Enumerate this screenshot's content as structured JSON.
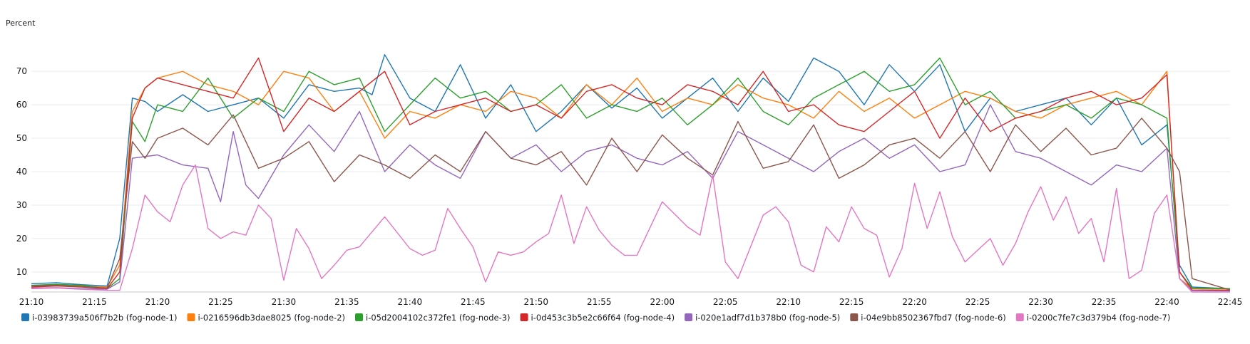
{
  "chart_data": {
    "type": "line",
    "ylabel": "Percent",
    "ylim": [
      4,
      76
    ],
    "y_ticks": [
      10,
      20,
      30,
      40,
      50,
      60,
      70
    ],
    "x_start": "21:10",
    "x_end": "22:45",
    "x_ticks": [
      "21:10",
      "21:15",
      "21:20",
      "21:25",
      "21:30",
      "21:35",
      "21:40",
      "21:45",
      "21:50",
      "21:55",
      "22:00",
      "22:05",
      "22:10",
      "22:15",
      "22:20",
      "22:25",
      "22:30",
      "22:35",
      "22:40",
      "22:45"
    ],
    "grid": true,
    "legend_position": "bottom",
    "series": [
      {
        "name": "i-03983739a506f7b2b (fog-node-1)",
        "color": "#1f77b4",
        "x": [
          "21:10",
          "21:12",
          "21:14",
          "21:16",
          "21:17",
          "21:18",
          "21:19",
          "21:20",
          "21:22",
          "21:24",
          "21:26",
          "21:28",
          "21:30",
          "21:32",
          "21:34",
          "21:36",
          "21:37",
          "21:38",
          "21:40",
          "21:42",
          "21:44",
          "21:46",
          "21:48",
          "21:50",
          "21:52",
          "21:54",
          "21:56",
          "21:58",
          "22:00",
          "22:02",
          "22:04",
          "22:06",
          "22:08",
          "22:10",
          "22:12",
          "22:14",
          "22:16",
          "22:18",
          "22:20",
          "22:22",
          "22:24",
          "22:26",
          "22:28",
          "22:30",
          "22:32",
          "22:34",
          "22:36",
          "22:38",
          "22:40",
          "22:41",
          "22:42",
          "22:45"
        ],
        "values": [
          6.5,
          6.8,
          6.2,
          5.8,
          20,
          62,
          61,
          58,
          63,
          58,
          60,
          62,
          56,
          66,
          64,
          65,
          63,
          75,
          62,
          58,
          72,
          56,
          66,
          52,
          58,
          66,
          59,
          65,
          56,
          62,
          68,
          58,
          68,
          61,
          74,
          70,
          60,
          72,
          64,
          72,
          52,
          62,
          58,
          60,
          62,
          54,
          62,
          48,
          54,
          12,
          5.5,
          5
        ]
      },
      {
        "name": "i-0216596db3dae8025 (fog-node-2)",
        "color": "#ff7f0e",
        "x": [
          "21:10",
          "21:12",
          "21:14",
          "21:16",
          "21:17",
          "21:18",
          "21:19",
          "21:20",
          "21:22",
          "21:24",
          "21:26",
          "21:28",
          "21:30",
          "21:32",
          "21:34",
          "21:36",
          "21:38",
          "21:40",
          "21:42",
          "21:44",
          "21:46",
          "21:48",
          "21:50",
          "21:52",
          "21:54",
          "21:56",
          "21:58",
          "22:00",
          "22:02",
          "22:04",
          "22:06",
          "22:08",
          "22:10",
          "22:12",
          "22:14",
          "22:16",
          "22:18",
          "22:20",
          "22:22",
          "22:24",
          "22:26",
          "22:28",
          "22:30",
          "22:32",
          "22:34",
          "22:36",
          "22:38",
          "22:40",
          "22:41",
          "22:42",
          "22:45"
        ],
        "values": [
          6,
          6.2,
          5.8,
          5.5,
          12,
          58,
          65,
          68,
          70,
          66,
          64,
          60,
          70,
          68,
          58,
          64,
          50,
          58,
          56,
          60,
          58,
          64,
          62,
          56,
          66,
          60,
          68,
          58,
          62,
          60,
          66,
          62,
          60,
          56,
          64,
          58,
          62,
          56,
          60,
          64,
          62,
          58,
          56,
          60,
          62,
          64,
          60,
          70,
          8,
          5,
          4.8
        ]
      },
      {
        "name": "i-05d2004102c372fe1 (fog-node-3)",
        "color": "#2ca02c",
        "x": [
          "21:10",
          "21:12",
          "21:14",
          "21:16",
          "21:17",
          "21:18",
          "21:19",
          "21:20",
          "21:22",
          "21:24",
          "21:26",
          "21:28",
          "21:30",
          "21:32",
          "21:34",
          "21:36",
          "21:38",
          "21:40",
          "21:42",
          "21:44",
          "21:46",
          "21:48",
          "21:50",
          "21:52",
          "21:54",
          "21:56",
          "21:58",
          "22:00",
          "22:02",
          "22:04",
          "22:06",
          "22:08",
          "22:10",
          "22:12",
          "22:14",
          "22:16",
          "22:18",
          "22:20",
          "22:22",
          "22:24",
          "22:26",
          "22:28",
          "22:30",
          "22:32",
          "22:34",
          "22:36",
          "22:38",
          "22:40",
          "22:41",
          "22:42",
          "22:45"
        ],
        "values": [
          6,
          6.3,
          6,
          5,
          8,
          55,
          49,
          60,
          58,
          68,
          56,
          62,
          58,
          70,
          66,
          68,
          52,
          60,
          68,
          62,
          64,
          58,
          60,
          66,
          56,
          60,
          58,
          62,
          54,
          60,
          68,
          58,
          54,
          62,
          66,
          70,
          64,
          66,
          74,
          60,
          64,
          56,
          58,
          60,
          56,
          62,
          60,
          56,
          10,
          5.2,
          5
        ]
      },
      {
        "name": "i-0d453c3b5e2c66f64 (fog-node-4)",
        "color": "#d62728",
        "x": [
          "21:10",
          "21:12",
          "21:14",
          "21:16",
          "21:17",
          "21:18",
          "21:19",
          "21:20",
          "21:22",
          "21:24",
          "21:26",
          "21:28",
          "21:30",
          "21:32",
          "21:34",
          "21:36",
          "21:38",
          "21:40",
          "21:42",
          "21:44",
          "21:46",
          "21:48",
          "21:50",
          "21:52",
          "21:54",
          "21:56",
          "21:58",
          "22:00",
          "22:02",
          "22:04",
          "22:06",
          "22:08",
          "22:10",
          "22:12",
          "22:14",
          "22:16",
          "22:18",
          "22:20",
          "22:22",
          "22:24",
          "22:26",
          "22:28",
          "22:30",
          "22:32",
          "22:34",
          "22:36",
          "22:38",
          "22:40",
          "22:41",
          "22:42",
          "22:45"
        ],
        "values": [
          5.5,
          5.8,
          5.5,
          5,
          10,
          56,
          65,
          68,
          66,
          64,
          62,
          74,
          52,
          62,
          58,
          64,
          70,
          54,
          58,
          60,
          62,
          58,
          60,
          56,
          64,
          66,
          62,
          60,
          66,
          64,
          60,
          70,
          58,
          60,
          54,
          52,
          58,
          64,
          50,
          62,
          52,
          56,
          58,
          62,
          64,
          60,
          62,
          69,
          10,
          4.6,
          4.5
        ]
      },
      {
        "name": "i-020e1adf7d1b378b0 (fog-node-5)",
        "color": "#9467bd",
        "x": [
          "21:10",
          "21:12",
          "21:14",
          "21:16",
          "21:17",
          "21:18",
          "21:20",
          "21:22",
          "21:24",
          "21:25",
          "21:26",
          "21:27",
          "21:28",
          "21:30",
          "21:32",
          "21:34",
          "21:36",
          "21:38",
          "21:40",
          "21:42",
          "21:44",
          "21:46",
          "21:48",
          "21:50",
          "21:52",
          "21:54",
          "21:56",
          "21:58",
          "22:00",
          "22:02",
          "22:04",
          "22:06",
          "22:08",
          "22:10",
          "22:12",
          "22:14",
          "22:16",
          "22:18",
          "22:20",
          "22:22",
          "22:24",
          "22:26",
          "22:28",
          "22:30",
          "22:32",
          "22:34",
          "22:36",
          "22:38",
          "22:40",
          "22:41",
          "22:42",
          "22:45"
        ],
        "values": [
          5.2,
          5.3,
          5,
          4.8,
          7,
          44,
          45,
          42,
          41,
          31,
          52,
          36,
          32,
          45,
          54,
          46,
          58,
          40,
          48,
          42,
          38,
          52,
          44,
          48,
          40,
          46,
          48,
          44,
          42,
          46,
          38,
          52,
          48,
          44,
          40,
          46,
          50,
          44,
          48,
          40,
          42,
          60,
          46,
          44,
          40,
          36,
          42,
          40,
          47,
          8,
          4.4,
          4.3
        ]
      },
      {
        "name": "i-04e9bb8502367fbd7 (fog-node-6)",
        "color": "#8c564b",
        "x": [
          "21:10",
          "21:12",
          "21:14",
          "21:16",
          "21:17",
          "21:18",
          "21:19",
          "21:20",
          "21:22",
          "21:24",
          "21:26",
          "21:28",
          "21:30",
          "21:32",
          "21:34",
          "21:36",
          "21:38",
          "21:40",
          "21:42",
          "21:44",
          "21:46",
          "21:48",
          "21:50",
          "21:52",
          "21:54",
          "21:56",
          "21:58",
          "22:00",
          "22:02",
          "22:04",
          "22:06",
          "22:08",
          "22:10",
          "22:12",
          "22:14",
          "22:16",
          "22:18",
          "22:20",
          "22:22",
          "22:24",
          "22:26",
          "22:28",
          "22:30",
          "22:32",
          "22:34",
          "22:36",
          "22:38",
          "22:40",
          "22:41",
          "22:42",
          "22:45"
        ],
        "values": [
          5.8,
          6,
          5.6,
          5.2,
          14,
          49,
          44,
          50,
          53,
          48,
          57,
          41,
          44,
          49,
          37,
          45,
          42,
          38,
          45,
          40,
          52,
          44,
          42,
          46,
          36,
          50,
          40,
          51,
          44,
          39,
          55,
          41,
          43,
          54,
          38,
          42,
          48,
          50,
          44,
          52,
          40,
          54,
          46,
          53,
          45,
          47,
          56,
          47,
          40,
          8,
          4.6
        ]
      },
      {
        "name": "i-0200c7fe7c3d379b4 (fog-node-7)",
        "color": "#e377c2",
        "x": [
          "21:10",
          "21:12",
          "21:14",
          "21:16",
          "21:17",
          "21:18",
          "21:19",
          "21:20",
          "21:21",
          "21:22",
          "21:23",
          "21:24",
          "21:25",
          "21:26",
          "21:27",
          "21:28",
          "21:29",
          "21:30",
          "21:31",
          "21:32",
          "21:33",
          "21:34",
          "21:35",
          "21:36",
          "21:38",
          "21:40",
          "21:41",
          "21:42",
          "21:43",
          "21:44",
          "21:45",
          "21:46",
          "21:47",
          "21:48",
          "21:49",
          "21:50",
          "21:51",
          "21:52",
          "21:53",
          "21:54",
          "21:55",
          "21:56",
          "21:57",
          "21:58",
          "22:00",
          "22:02",
          "22:03",
          "22:04",
          "22:05",
          "22:06",
          "22:08",
          "22:09",
          "22:10",
          "22:11",
          "22:12",
          "22:13",
          "22:14",
          "22:15",
          "22:16",
          "22:17",
          "22:18",
          "22:19",
          "22:20",
          "22:21",
          "22:22",
          "22:23",
          "22:24",
          "22:25",
          "22:26",
          "22:27",
          "22:28",
          "22:29",
          "22:30",
          "22:31",
          "22:32",
          "22:33",
          "22:34",
          "22:35",
          "22:36",
          "22:37",
          "22:38",
          "22:39",
          "22:40",
          "22:41",
          "22:42",
          "22:45"
        ],
        "values": [
          5,
          5.2,
          4.8,
          4.5,
          4.5,
          17,
          33,
          28,
          25,
          36,
          42,
          23,
          20,
          22,
          21,
          30,
          26,
          7.5,
          23,
          17,
          8,
          12,
          16.5,
          17.5,
          26.5,
          17,
          15,
          16.5,
          29,
          23,
          17.5,
          7,
          16,
          15,
          16,
          19,
          21.5,
          33,
          18.5,
          29.5,
          22.5,
          18,
          15,
          15,
          31,
          23.5,
          21,
          39,
          13,
          8,
          27,
          29.5,
          25,
          12,
          10,
          23.5,
          19,
          29.5,
          23,
          21,
          8.5,
          17,
          36.5,
          23,
          34,
          20.5,
          13,
          16.5,
          20,
          12,
          18.5,
          28,
          35.5,
          25.5,
          32.5,
          21.5,
          26,
          13,
          35,
          8,
          10.5,
          27.5,
          33,
          8,
          4,
          4
        ]
      }
    ]
  }
}
